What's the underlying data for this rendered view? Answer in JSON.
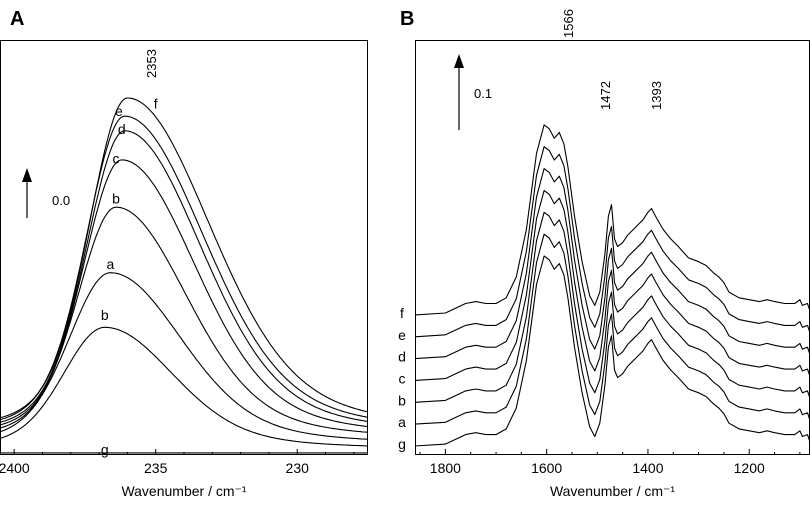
{
  "chart_data": [
    {
      "type": "line",
      "panel_label": "A",
      "xlabel": "Wavenumber / cm⁻¹",
      "ylabel": "",
      "xlim": [
        2405,
        2275
      ],
      "x_ticks": [
        2400,
        2350,
        2300
      ],
      "x_tick_labels": [
        "2400",
        "235",
        "230"
      ],
      "peak_annotation": "2353",
      "scale_bar_label": "0.0",
      "series": [
        {
          "name": "g",
          "peak_x": 2368,
          "peak": 0.002,
          "baseline": 0.025,
          "sigma_lo": 16,
          "sigma_hi": 26
        },
        {
          "name": "b",
          "peak_x": 2368,
          "peak": 0.37,
          "baseline": 0.03,
          "sigma_lo": 14,
          "sigma_hi": 23
        },
        {
          "name": "a",
          "peak_x": 2366,
          "peak": 0.52,
          "baseline": 0.04,
          "sigma_lo": 14,
          "sigma_hi": 24
        },
        {
          "name": "b",
          "peak_x": 2364,
          "peak": 0.7,
          "baseline": 0.05,
          "sigma_lo": 13,
          "sigma_hi": 24
        },
        {
          "name": "c",
          "peak_x": 2362,
          "peak": 0.83,
          "baseline": 0.055,
          "sigma_lo": 13,
          "sigma_hi": 25
        },
        {
          "name": "d",
          "peak_x": 2361,
          "peak": 0.91,
          "baseline": 0.06,
          "sigma_lo": 13,
          "sigma_hi": 26
        },
        {
          "name": "e",
          "peak_x": 2361,
          "peak": 0.95,
          "baseline": 0.065,
          "sigma_lo": 13,
          "sigma_hi": 27
        },
        {
          "name": "f",
          "peak_x": 2360,
          "peak": 1.0,
          "baseline": 0.07,
          "sigma_lo": 13,
          "sigma_hi": 28
        }
      ]
    },
    {
      "type": "line",
      "panel_label": "B",
      "xlabel": "Wavenumber / cm⁻¹",
      "ylabel": "",
      "xlim": [
        1860,
        1080
      ],
      "x_ticks": [
        1800,
        1600,
        1400,
        1200
      ],
      "x_tick_labels": [
        "1800",
        "1600",
        "1400",
        "1200"
      ],
      "peak_annotations": [
        "1566",
        "1472",
        "1393"
      ],
      "scale_bar_label": "0.1",
      "trace_offset": 0.115,
      "series": [
        {
          "name": "g"
        },
        {
          "name": "a"
        },
        {
          "name": "b"
        },
        {
          "name": "c"
        },
        {
          "name": "d"
        },
        {
          "name": "e"
        },
        {
          "name": "f"
        }
      ],
      "base_spectrum": {
        "x": [
          1860,
          1800,
          1760,
          1740,
          1720,
          1700,
          1680,
          1660,
          1640,
          1620,
          1605,
          1595,
          1585,
          1575,
          1566,
          1558,
          1545,
          1530,
          1515,
          1505,
          1495,
          1485,
          1478,
          1472,
          1466,
          1460,
          1450,
          1440,
          1425,
          1410,
          1400,
          1393,
          1385,
          1370,
          1355,
          1340,
          1320,
          1300,
          1285,
          1270,
          1260,
          1250,
          1240,
          1220,
          1200,
          1180,
          1165,
          1150,
          1130,
          1110,
          1100,
          1095,
          1085,
          1080
        ],
        "y": [
          0.0,
          0.01,
          0.06,
          0.07,
          0.06,
          0.06,
          0.09,
          0.2,
          0.45,
          0.85,
          1.0,
          0.98,
          0.93,
          0.96,
          0.9,
          0.78,
          0.52,
          0.28,
          0.1,
          0.05,
          0.12,
          0.32,
          0.52,
          0.58,
          0.4,
          0.36,
          0.38,
          0.42,
          0.46,
          0.5,
          0.54,
          0.56,
          0.52,
          0.45,
          0.4,
          0.36,
          0.3,
          0.28,
          0.26,
          0.22,
          0.2,
          0.17,
          0.12,
          0.09,
          0.08,
          0.07,
          0.08,
          0.07,
          0.06,
          0.06,
          0.08,
          0.05,
          0.06,
          0.02
        ]
      }
    }
  ]
}
